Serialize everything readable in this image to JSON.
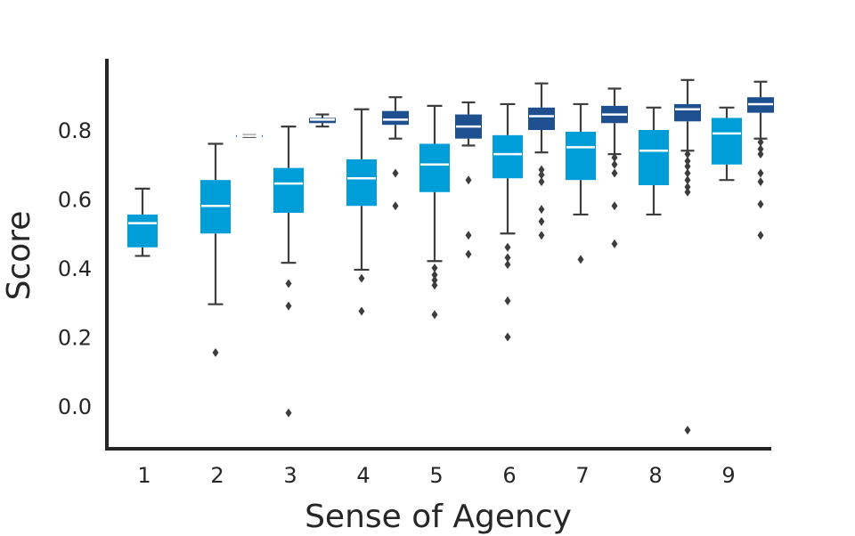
{
  "chart_data": {
    "type": "box",
    "title": "",
    "xlabel": "Sense of Agency",
    "ylabel": "Score",
    "categories": [
      "1",
      "2",
      "3",
      "4",
      "5",
      "6",
      "7",
      "8",
      "9"
    ],
    "ylim": [
      -0.13,
      0.99
    ],
    "yticks": [
      "0.0",
      "0.2",
      "0.4",
      "0.6",
      "0.8"
    ],
    "legend": "none",
    "grid": false,
    "series": [
      {
        "color": "#009ED9",
        "boxes": [
          {
            "category": "1",
            "q1": 0.46,
            "median": 0.53,
            "q3": 0.555,
            "whisker_low": 0.435,
            "whisker_high": 0.63,
            "outliers": []
          },
          {
            "category": "2",
            "q1": 0.5,
            "median": 0.58,
            "q3": 0.655,
            "whisker_low": 0.295,
            "whisker_high": 0.76,
            "outliers": [
              0.155
            ]
          },
          {
            "category": "3",
            "q1": 0.56,
            "median": 0.645,
            "q3": 0.69,
            "whisker_low": 0.415,
            "whisker_high": 0.81,
            "outliers": [
              0.355,
              0.29,
              -0.02
            ]
          },
          {
            "category": "4",
            "q1": 0.58,
            "median": 0.66,
            "q3": 0.715,
            "whisker_low": 0.395,
            "whisker_high": 0.86,
            "outliers": [
              0.37,
              0.275
            ]
          },
          {
            "category": "5",
            "q1": 0.62,
            "median": 0.7,
            "q3": 0.76,
            "whisker_low": 0.42,
            "whisker_high": 0.87,
            "outliers": [
              0.4,
              0.38,
              0.365,
              0.35,
              0.265
            ]
          },
          {
            "category": "6",
            "q1": 0.66,
            "median": 0.73,
            "q3": 0.785,
            "whisker_low": 0.5,
            "whisker_high": 0.875,
            "outliers": [
              0.46,
              0.43,
              0.41,
              0.305,
              0.2
            ]
          },
          {
            "category": "7",
            "q1": 0.655,
            "median": 0.75,
            "q3": 0.795,
            "whisker_low": 0.555,
            "whisker_high": 0.875,
            "outliers": [
              0.425
            ]
          },
          {
            "category": "8",
            "q1": 0.64,
            "median": 0.74,
            "q3": 0.8,
            "whisker_low": 0.555,
            "whisker_high": 0.865,
            "outliers": []
          },
          {
            "category": "9",
            "q1": 0.7,
            "median": 0.79,
            "q3": 0.835,
            "whisker_low": 0.655,
            "whisker_high": 0.865,
            "outliers": []
          }
        ]
      },
      {
        "color": "#1E4F8F",
        "boxes": [
          {
            "category": "2",
            "q1": 0.78,
            "median": 0.783,
            "q3": 0.785,
            "whisker_low": 0.78,
            "whisker_high": 0.785,
            "outliers": []
          },
          {
            "category": "3",
            "q1": 0.82,
            "median": 0.83,
            "q3": 0.835,
            "whisker_low": 0.81,
            "whisker_high": 0.845,
            "outliers": []
          },
          {
            "category": "4",
            "q1": 0.815,
            "median": 0.83,
            "q3": 0.855,
            "whisker_low": 0.775,
            "whisker_high": 0.895,
            "outliers": [
              0.675,
              0.58
            ]
          },
          {
            "category": "5",
            "q1": 0.775,
            "median": 0.81,
            "q3": 0.845,
            "whisker_low": 0.755,
            "whisker_high": 0.88,
            "outliers": [
              0.655,
              0.495,
              0.44
            ]
          },
          {
            "category": "6",
            "q1": 0.8,
            "median": 0.84,
            "q3": 0.865,
            "whisker_low": 0.735,
            "whisker_high": 0.935,
            "outliers": [
              0.685,
              0.67,
              0.65,
              0.57,
              0.535,
              0.495
            ]
          },
          {
            "category": "7",
            "q1": 0.82,
            "median": 0.845,
            "q3": 0.87,
            "whisker_low": 0.73,
            "whisker_high": 0.92,
            "outliers": [
              0.72,
              0.7,
              0.675,
              0.58,
              0.47
            ]
          },
          {
            "category": "8",
            "q1": 0.825,
            "median": 0.86,
            "q3": 0.875,
            "whisker_low": 0.74,
            "whisker_high": 0.945,
            "outliers": [
              0.73,
              0.71,
              0.695,
              0.675,
              0.655,
              0.635,
              0.62,
              -0.07
            ]
          },
          {
            "category": "9",
            "q1": 0.85,
            "median": 0.875,
            "q3": 0.895,
            "whisker_low": 0.775,
            "whisker_high": 0.94,
            "outliers": [
              0.765,
              0.745,
              0.73,
              0.675,
              0.65,
              0.585,
              0.495
            ]
          }
        ]
      }
    ]
  }
}
